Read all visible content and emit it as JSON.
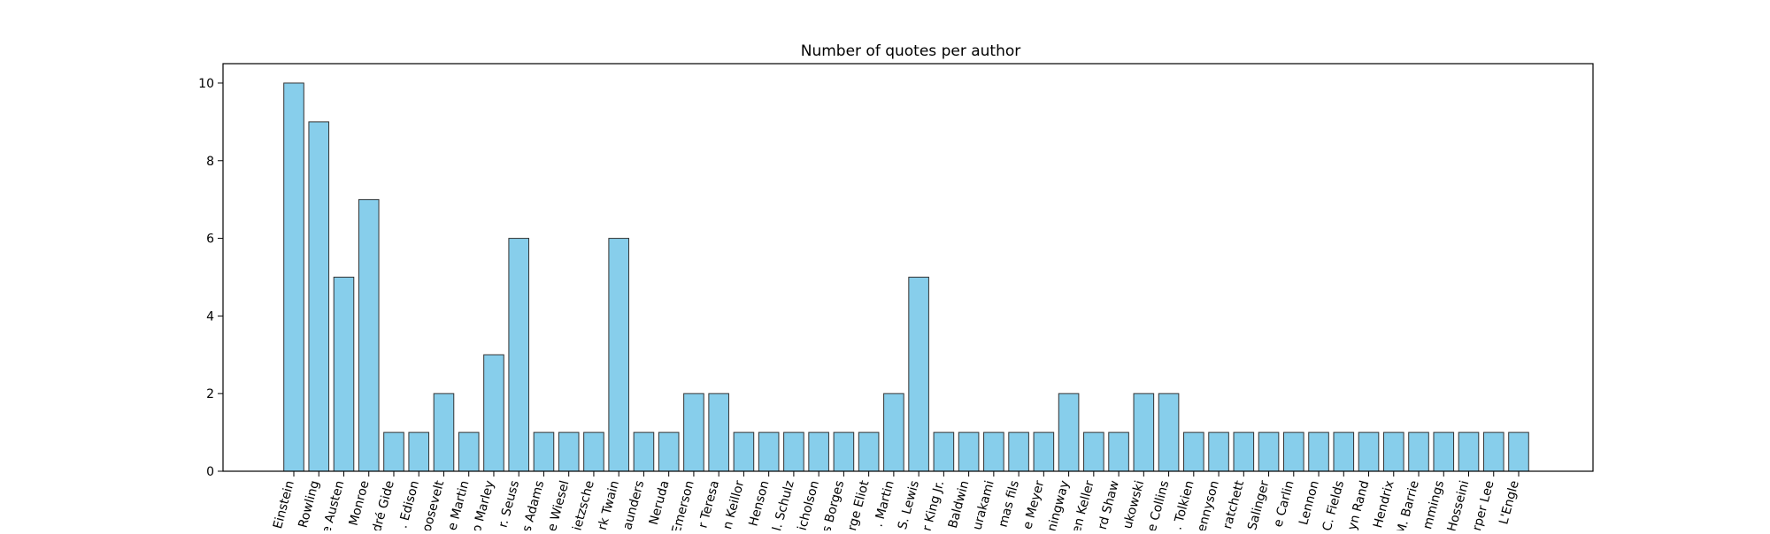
{
  "chart_data": {
    "type": "bar",
    "title": "Number of quotes per author",
    "xlabel": "",
    "ylabel": "",
    "ylim": [
      0,
      10.5
    ],
    "yticks": [
      0,
      2,
      4,
      6,
      8,
      10
    ],
    "grid": false,
    "legend": "none",
    "bar_color": "#87ceeb",
    "bar_edge_color": "#333333",
    "categories": [
      "Einstein",
      "Rowling",
      "e Austen",
      "Monroe",
      "dré Gide",
      ". Edison",
      "oosevelt",
      "e Martin",
      "o Marley",
      "r. Seuss",
      "s Adams",
      "e Wiesel",
      "ietzsche",
      "rk Twain",
      "aunders",
      "Neruda",
      "Emerson",
      "r Teresa",
      "n Keillor",
      "Henson",
      "l. Schulz",
      "icholson",
      "s Borges",
      "rge Eliot",
      ". Martin",
      "S. Lewis",
      "r King Jr.",
      "Baldwin",
      "urakami",
      "mas fils",
      "e Meyer",
      "ningway",
      "en Keller",
      "rd Shaw",
      "ukowski",
      "e Collins",
      ". Tolkien",
      "ennyson",
      "ratchett",
      "Salinger",
      "e Carlin",
      "Lennon",
      "C. Fields",
      "yn Rand",
      "Hendrix",
      "M. Barrie",
      "mmings",
      "Hosseini",
      "rper Lee",
      "L'Engle"
    ],
    "values": [
      10,
      9,
      5,
      7,
      1,
      1,
      2,
      1,
      3,
      6,
      1,
      1,
      1,
      6,
      1,
      1,
      2,
      2,
      1,
      1,
      1,
      1,
      1,
      1,
      2,
      5,
      1,
      1,
      1,
      1,
      1,
      2,
      1,
      1,
      2,
      2,
      1,
      1,
      1,
      1,
      1,
      1,
      1,
      1,
      1,
      1,
      1,
      1,
      1,
      1
    ]
  }
}
